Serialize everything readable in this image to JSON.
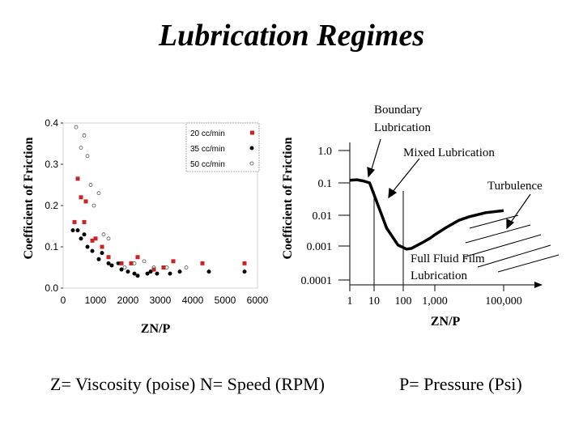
{
  "slide": {
    "title": "Lubrication Regimes",
    "formula_left": "Z= Viscosity (poise)   N= Speed (RPM)",
    "formula_right": "P= Pressure (Psi)"
  },
  "chart_data": [
    {
      "type": "scatter",
      "title": "",
      "xlabel": "ZN/P",
      "ylabel": "Coefficient of Friction",
      "xlim": [
        0,
        6000
      ],
      "ylim": [
        0.0,
        0.4
      ],
      "x_ticks": [
        "0",
        "1000",
        "2000",
        "3000",
        "4000",
        "5000",
        "6000"
      ],
      "y_ticks": [
        "0.0",
        "0.1",
        "0.2",
        "0.3",
        "0.4"
      ],
      "legend_position": "top-right",
      "series": [
        {
          "name": "20 cc/min",
          "color": "#cc2222",
          "marker": "square",
          "x": [
            350,
            450,
            550,
            650,
            700,
            900,
            1000,
            1200,
            1400,
            1800,
            2100,
            2300,
            2800,
            3100,
            3400,
            4300,
            5600
          ],
          "y": [
            0.16,
            0.265,
            0.22,
            0.16,
            0.21,
            0.115,
            0.12,
            0.1,
            0.075,
            0.06,
            0.06,
            0.075,
            0.045,
            0.05,
            0.065,
            0.06,
            0.06
          ]
        },
        {
          "name": "35 cc/min",
          "color": "#000000",
          "marker": "dot",
          "x": [
            300,
            450,
            550,
            650,
            750,
            900,
            1100,
            1200,
            1400,
            1500,
            1700,
            1800,
            2000,
            2200,
            2300,
            2600,
            2700,
            2900,
            3300,
            3600,
            4500,
            5600
          ],
          "y": [
            0.14,
            0.14,
            0.12,
            0.13,
            0.1,
            0.09,
            0.07,
            0.085,
            0.06,
            0.055,
            0.06,
            0.045,
            0.04,
            0.035,
            0.03,
            0.035,
            0.04,
            0.035,
            0.035,
            0.04,
            0.04,
            0.04
          ]
        },
        {
          "name": "50 cc/min",
          "color": "#555555",
          "marker": "open",
          "x": [
            400,
            550,
            650,
            750,
            850,
            950,
            1100,
            1250,
            1400,
            1700,
            1900,
            2200,
            2500,
            2800,
            3200,
            3800
          ],
          "y": [
            0.39,
            0.34,
            0.37,
            0.32,
            0.25,
            0.2,
            0.23,
            0.13,
            0.12,
            0.06,
            0.05,
            0.06,
            0.065,
            0.05,
            0.05,
            0.05
          ]
        }
      ]
    },
    {
      "type": "line",
      "title": "",
      "xlabel": "ZN/P",
      "ylabel": "Coefficient of Friction",
      "x_ticks": [
        "1",
        "10",
        "100",
        "1,000",
        "100,000"
      ],
      "y_ticks": [
        "1.0",
        "0.1",
        "0.01",
        "0.001",
        "0.0001"
      ],
      "annotations": [
        "Boundary Lubrication",
        "Mixed Lubrication",
        "Turbulence",
        "Full Fluid Film Lubrication"
      ],
      "series": [
        {
          "name": "",
          "x": [
            1,
            1.8,
            3,
            5,
            10,
            20,
            50,
            100,
            150,
            250,
            400,
            700,
            1000,
            2000,
            5000,
            10000,
            30000,
            100000
          ],
          "y": [
            0.12,
            0.125,
            0.115,
            0.1,
            0.02,
            0.004,
            0.0012,
            0.0009,
            0.00095,
            0.0012,
            0.0015,
            0.002,
            0.0025,
            0.004,
            0.007,
            0.009,
            0.012,
            0.014
          ]
        }
      ]
    }
  ]
}
